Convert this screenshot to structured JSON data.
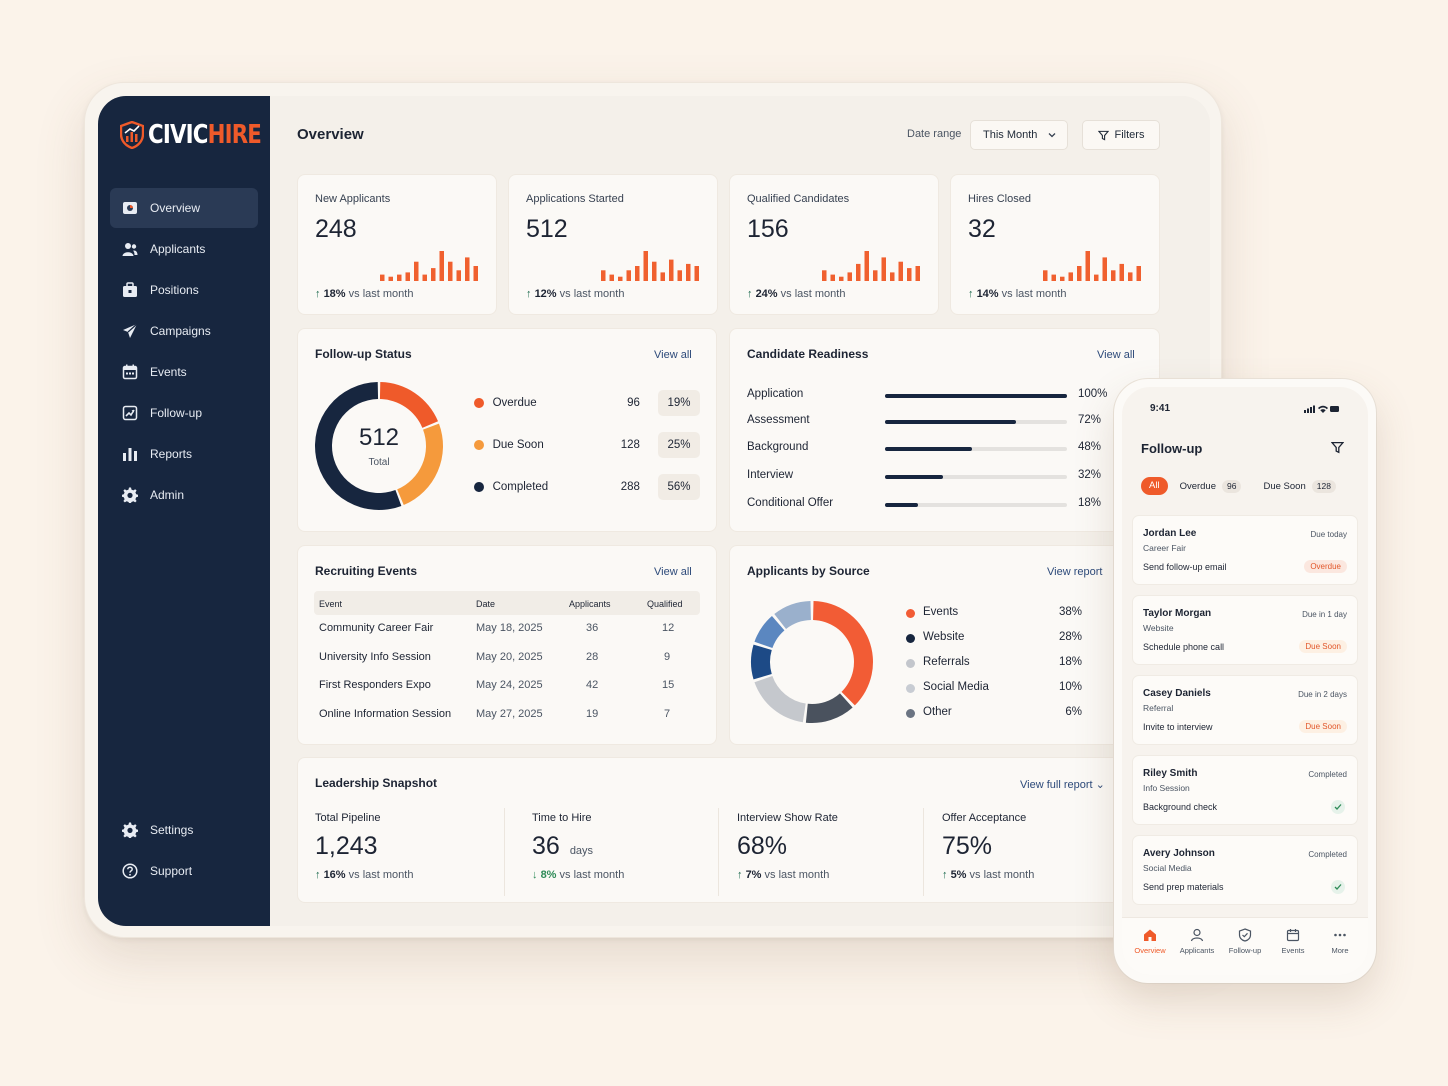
{
  "app": {
    "brand_part1": "CIVIC",
    "brand_part2": "HIRE",
    "colors": {
      "brand": "#ef5a2a",
      "sidebar": "#17263f",
      "background": "#fbf3ea"
    }
  },
  "sidebar": {
    "items": [
      {
        "label": "Overview",
        "icon": "overview-icon"
      },
      {
        "label": "Applicants",
        "icon": "users-icon"
      },
      {
        "label": "Positions",
        "icon": "briefcase-icon"
      },
      {
        "label": "Campaigns",
        "icon": "send-icon"
      },
      {
        "label": "Events",
        "icon": "calendar-icon"
      },
      {
        "label": "Follow-up",
        "icon": "follow-up-icon"
      },
      {
        "label": "Reports",
        "icon": "bar-chart-icon"
      },
      {
        "label": "Admin",
        "icon": "gear-icon"
      }
    ],
    "bottom": [
      {
        "label": "Settings",
        "icon": "gear-icon"
      },
      {
        "label": "Support",
        "icon": "help-icon"
      }
    ]
  },
  "header": {
    "title": "Overview",
    "date_range_label": "Date range",
    "date_range_value": "This Month",
    "filters_label": "Filters"
  },
  "kpis": [
    {
      "label": "New Applicants",
      "value": "248",
      "trend": "18%",
      "trend_text": "vs last month",
      "spark": [
        3,
        2,
        3,
        4,
        9,
        3,
        6,
        14,
        9,
        5,
        11,
        7
      ]
    },
    {
      "label": "Applications Started",
      "value": "512",
      "trend": "12%",
      "trend_text": "vs last month",
      "spark": [
        5,
        3,
        2,
        5,
        7,
        14,
        9,
        4,
        10,
        5,
        8,
        7
      ]
    },
    {
      "label": "Qualified Candidates",
      "value": "156",
      "trend": "24%",
      "trend_text": "vs last month",
      "spark": [
        5,
        3,
        2,
        4,
        8,
        14,
        5,
        11,
        4,
        9,
        6,
        7
      ]
    },
    {
      "label": "Hires Closed",
      "value": "32",
      "trend": "14%",
      "trend_text": "vs last month",
      "spark": [
        5,
        3,
        2,
        4,
        7,
        14,
        3,
        11,
        5,
        8,
        4,
        7
      ]
    }
  ],
  "follow_up_status": {
    "title": "Follow-up Status",
    "view_all": "View all",
    "total": "512",
    "total_label": "Total",
    "items": [
      {
        "name": "Overdue",
        "count": "96",
        "pct": "19%",
        "value": 19,
        "color": "#ef5a2a"
      },
      {
        "name": "Due Soon",
        "count": "128",
        "pct": "25%",
        "value": 25,
        "color": "#f59a3c"
      },
      {
        "name": "Completed",
        "count": "288",
        "pct": "56%",
        "value": 56,
        "color": "#17263f"
      }
    ]
  },
  "candidate_readiness": {
    "title": "Candidate Readiness",
    "view_all": "View all",
    "items": [
      {
        "label": "Application",
        "pct": "100%",
        "value": 100
      },
      {
        "label": "Assessment",
        "pct": "72%",
        "value": 72
      },
      {
        "label": "Background",
        "pct": "48%",
        "value": 48
      },
      {
        "label": "Interview",
        "pct": "32%",
        "value": 32
      },
      {
        "label": "Conditional Offer",
        "pct": "18%",
        "value": 18
      }
    ]
  },
  "recruiting_events": {
    "title": "Recruiting Events",
    "view_all": "View all",
    "columns": [
      "Event",
      "Date",
      "Applicants",
      "Qualified"
    ],
    "rows": [
      [
        "Community Career Fair",
        "May 18, 2025",
        "36",
        "12"
      ],
      [
        "University Info Session",
        "May 20, 2025",
        "28",
        "9"
      ],
      [
        "First Responders Expo",
        "May 24, 2025",
        "42",
        "15"
      ],
      [
        "Online Information Session",
        "May 27, 2025",
        "19",
        "7"
      ]
    ]
  },
  "applicants_by_source": {
    "title": "Applicants by Source",
    "view_report": "View report",
    "items": [
      {
        "name": "Events",
        "pct": "38%",
        "value": 38,
        "color": "#f25c35"
      },
      {
        "name": "Website",
        "pct": "28%",
        "value": 28,
        "color": "#17263f"
      },
      {
        "name": "Referrals",
        "pct": "18%",
        "value": 18,
        "color": "#c3c6cc"
      },
      {
        "name": "Social Media",
        "pct": "10%",
        "value": 10,
        "color": "#c8ccd3"
      },
      {
        "name": "Other",
        "pct": "6%",
        "value": 6,
        "color": "#6b7482"
      }
    ],
    "ring_colors": [
      "#f25c35",
      "#4a525e",
      "#c5c8cd",
      "#1d4a86",
      "#5b87c0",
      "#9ab0cc"
    ]
  },
  "leadership_snapshot": {
    "title": "Leadership Snapshot",
    "view_full_report": "View full report",
    "metrics": [
      {
        "label": "Total Pipeline",
        "value": "1,243",
        "unit": "",
        "trend": "16%",
        "trend_text": "vs last month",
        "direction": "up"
      },
      {
        "label": "Time to Hire",
        "value": "36",
        "unit": "days",
        "trend": "8%",
        "trend_text": "vs last month",
        "direction": "down"
      },
      {
        "label": "Interview Show Rate",
        "value": "68%",
        "unit": "",
        "trend": "7%",
        "trend_text": "vs last month",
        "direction": "up"
      },
      {
        "label": "Offer Acceptance",
        "value": "75%",
        "unit": "",
        "trend": "5%",
        "trend_text": "vs last month",
        "direction": "up"
      }
    ]
  },
  "phone": {
    "time": "9:41",
    "title": "Follow-up",
    "tabs": [
      {
        "label": "All"
      },
      {
        "label": "Overdue",
        "count": "96"
      },
      {
        "label": "Due Soon",
        "count": "128"
      }
    ],
    "cards": [
      {
        "name": "Jordan Lee",
        "source": "Career Fair",
        "task": "Send follow-up email",
        "due": "Due today",
        "status": "Overdue"
      },
      {
        "name": "Taylor Morgan",
        "source": "Website",
        "task": "Schedule phone call",
        "due": "Due in 1 day",
        "status": "Due Soon"
      },
      {
        "name": "Casey Daniels",
        "source": "Referral",
        "task": "Invite to interview",
        "due": "Due in 2 days",
        "status": "Due Soon"
      },
      {
        "name": "Riley Smith",
        "source": "Info Session",
        "task": "Background check",
        "due": "Completed",
        "status": ""
      },
      {
        "name": "Avery Johnson",
        "source": "Social Media",
        "task": "Send prep materials",
        "due": "Completed",
        "status": ""
      }
    ],
    "nav": [
      {
        "label": "Overview",
        "icon": "home-icon"
      },
      {
        "label": "Applicants",
        "icon": "user-icon"
      },
      {
        "label": "Follow-up",
        "icon": "shield-icon"
      },
      {
        "label": "Events",
        "icon": "calendar-icon"
      },
      {
        "label": "More",
        "icon": "more-icon"
      }
    ]
  }
}
